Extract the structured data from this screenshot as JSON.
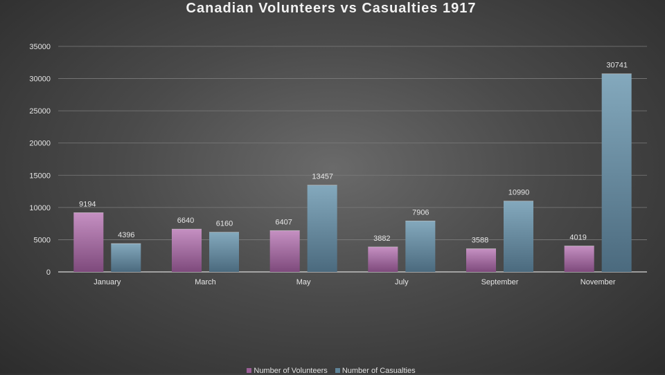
{
  "chart_data": {
    "type": "bar",
    "title": "Canadian Volunteers vs Casualties 1917",
    "categories": [
      "January",
      "March",
      "May",
      "July",
      "September",
      "November"
    ],
    "series": [
      {
        "name": "Number of Volunteers",
        "values": [
          9194,
          6640,
          6407,
          3882,
          3588,
          4019
        ],
        "color": "#9a5e96"
      },
      {
        "name": "Number of Casualties",
        "values": [
          4396,
          6160,
          13457,
          7906,
          10990,
          30741
        ],
        "color": "#5f8499"
      }
    ],
    "ylim": [
      0,
      35000
    ],
    "yticks": [
      0,
      5000,
      10000,
      15000,
      20000,
      25000,
      30000,
      35000
    ],
    "grid": true,
    "legend_position": "bottom"
  }
}
